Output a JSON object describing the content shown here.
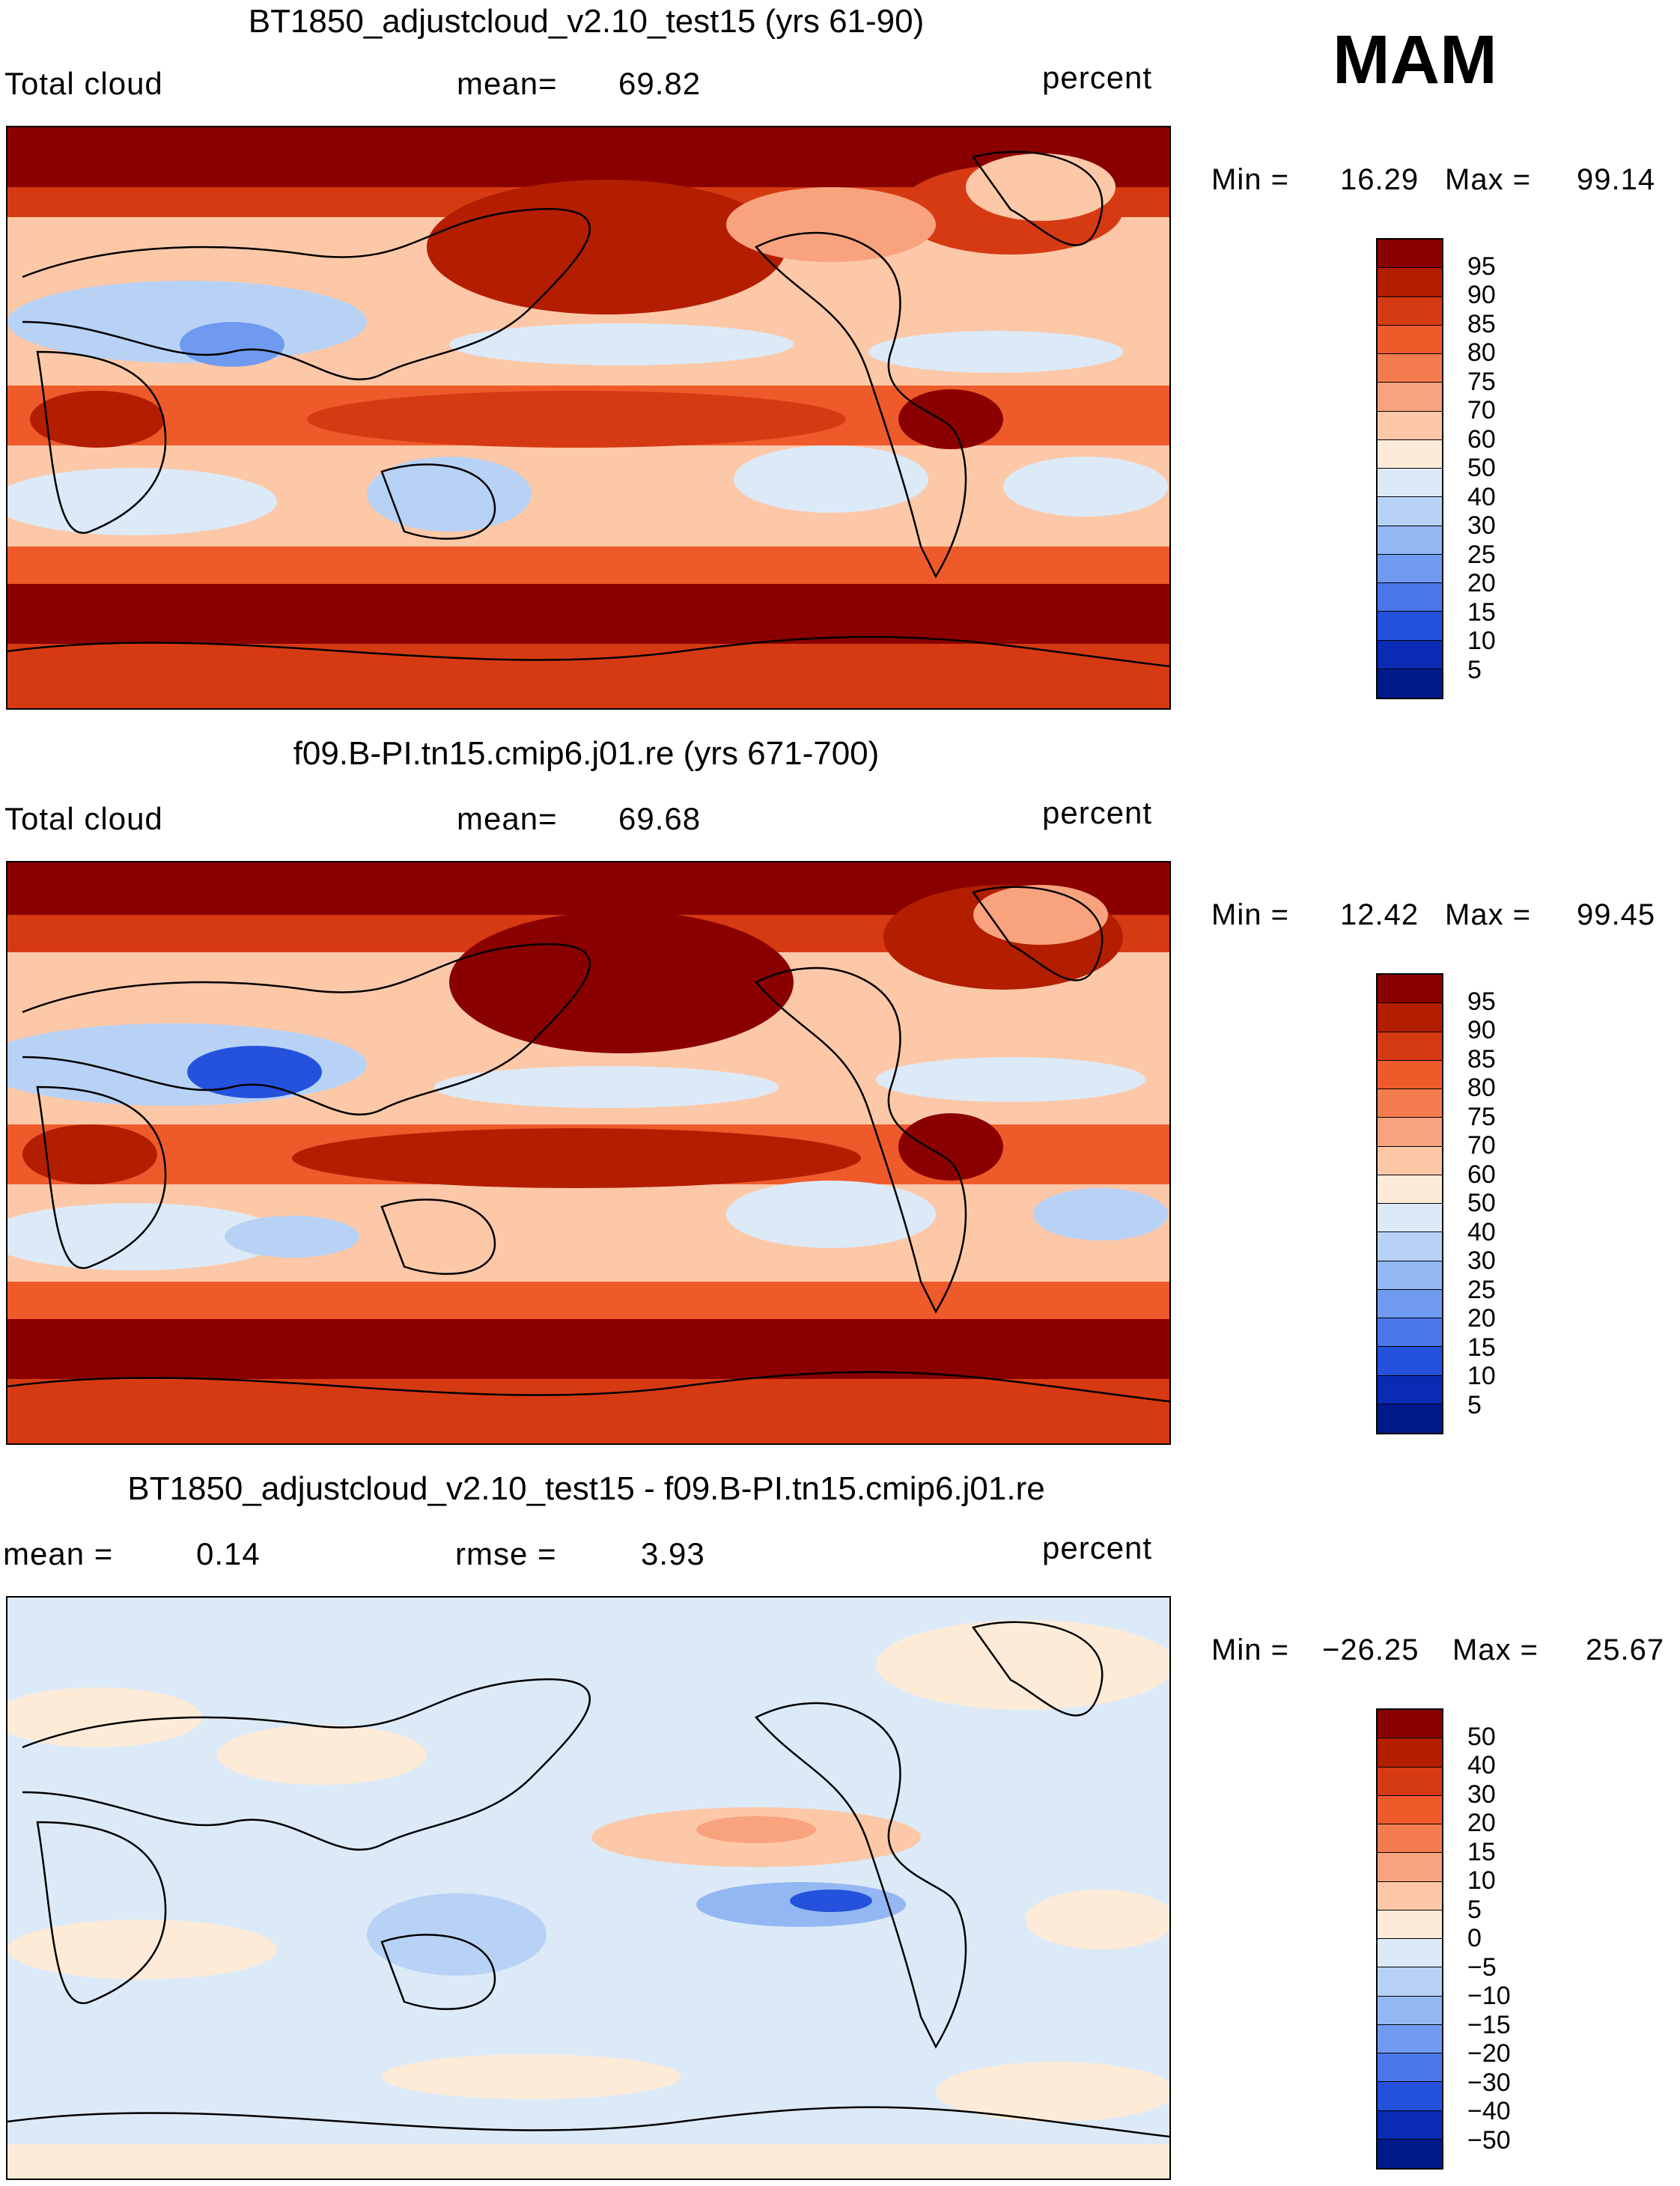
{
  "season": "MAM",
  "panels": [
    {
      "title": "BT1850_adjustcloud_v2.10_test15 (yrs 61-90)",
      "left_label": "Total cloud",
      "center_label": "mean=",
      "center_value": "69.82",
      "units": "percent",
      "min_label": "Min =",
      "min_value": "16.29",
      "max_label": "Max =",
      "max_value": "99.14",
      "colorbar": {
        "labels": [
          "95",
          "90",
          "85",
          "80",
          "75",
          "70",
          "60",
          "50",
          "40",
          "30",
          "25",
          "20",
          "15",
          "10",
          "5"
        ],
        "colors": [
          "#8a0000",
          "#b31d00",
          "#d63a12",
          "#ef5a2a",
          "#f57c4e",
          "#f9a27e",
          "#fcc8a8",
          "#fdebd8",
          "#dceaf8",
          "#b8d2f5",
          "#93b7f2",
          "#6f9af0",
          "#4a78ec",
          "#2452dc",
          "#0a2cb4",
          "#001a8c"
        ]
      }
    },
    {
      "title": "f09.B-PI.tn15.cmip6.j01.re (yrs 671-700)",
      "left_label": "Total cloud",
      "center_label": "mean=",
      "center_value": "69.68",
      "units": "percent",
      "min_label": "Min =",
      "min_value": "12.42",
      "max_label": "Max =",
      "max_value": "99.45",
      "colorbar": {
        "labels": [
          "95",
          "90",
          "85",
          "80",
          "75",
          "70",
          "60",
          "50",
          "40",
          "30",
          "25",
          "20",
          "15",
          "10",
          "5"
        ],
        "colors": [
          "#8a0000",
          "#b31d00",
          "#d63a12",
          "#ef5a2a",
          "#f57c4e",
          "#f9a27e",
          "#fcc8a8",
          "#fdebd8",
          "#dceaf8",
          "#b8d2f5",
          "#93b7f2",
          "#6f9af0",
          "#4a78ec",
          "#2452dc",
          "#0a2cb4",
          "#001a8c"
        ]
      }
    },
    {
      "title": "BT1850_adjustcloud_v2.10_test15 - f09.B-PI.tn15.cmip6.j01.re",
      "left_label": "mean =",
      "left_value": "0.14",
      "center_label": "rmse =",
      "center_value": "3.93",
      "units": "percent",
      "min_label": "Min =",
      "min_value": "−26.25",
      "max_label": "Max =",
      "max_value": "25.67",
      "colorbar": {
        "labels": [
          "50",
          "40",
          "30",
          "20",
          "15",
          "10",
          "5",
          "0",
          "−5",
          "−10",
          "−15",
          "−20",
          "−30",
          "−40",
          "−50"
        ],
        "colors": [
          "#8a0000",
          "#b31d00",
          "#d63a12",
          "#ef5a2a",
          "#f57c4e",
          "#f9a27e",
          "#fcc8a8",
          "#fdebd8",
          "#dceaf8",
          "#b8d2f5",
          "#93b7f2",
          "#6f9af0",
          "#4a78ec",
          "#2452dc",
          "#0a2cb4",
          "#001a8c"
        ]
      }
    }
  ]
}
